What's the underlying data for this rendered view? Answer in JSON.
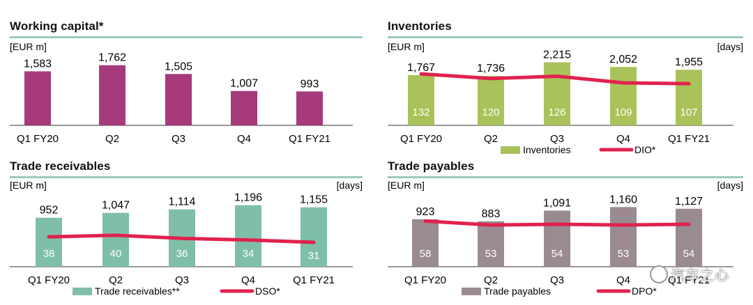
{
  "chart_data": [
    {
      "type": "bar",
      "title": "Working capital*",
      "ylabel": "[EUR m]",
      "categories": [
        "Q1 FY20",
        "Q2",
        "Q3",
        "Q4",
        "Q1 FY21"
      ],
      "values": [
        1583,
        1762,
        1505,
        1007,
        993
      ],
      "value_labels": [
        "1,583",
        "1,762",
        "1,505",
        "1,007",
        "993"
      ],
      "ylim": [
        0,
        2000
      ],
      "colors": {
        "bar": "#a63a7b"
      }
    },
    {
      "type": "bar",
      "title": "Inventories",
      "ylabel": "[EUR m]",
      "y2label": "[days]",
      "categories": [
        "Q1 FY20",
        "Q2",
        "Q3",
        "Q4",
        "Q1 FY21"
      ],
      "values": [
        1767,
        1736,
        2215,
        2052,
        1955
      ],
      "value_labels": [
        "1,767",
        "1,736",
        "2,215",
        "2,052",
        "1,955"
      ],
      "days": [
        132,
        120,
        126,
        109,
        107
      ],
      "ylim": [
        0,
        2400
      ],
      "y2lim": [
        0,
        175
      ],
      "series": [
        {
          "name": "Inventories"
        },
        {
          "name": "DIO*"
        }
      ],
      "colors": {
        "bar": "#a9c25a",
        "line": "#e0224e"
      }
    },
    {
      "type": "bar",
      "title": "Trade receivables",
      "ylabel": "[EUR m]",
      "y2label": "[days]",
      "categories": [
        "Q1 FY20",
        "Q2",
        "Q3",
        "Q4",
        "Q1 FY21"
      ],
      "values": [
        952,
        1047,
        1114,
        1196,
        1155
      ],
      "value_labels": [
        "952",
        "1,047",
        "1,114",
        "1,196",
        "1,155"
      ],
      "days": [
        38,
        40,
        36,
        34,
        31
      ],
      "ylim": [
        0,
        1300
      ],
      "y2lim": [
        0,
        85
      ],
      "series": [
        {
          "name": "Trade receivables**"
        },
        {
          "name": "DSO*"
        }
      ],
      "colors": {
        "bar": "#7fbfa8",
        "line": "#e0224e"
      }
    },
    {
      "type": "bar",
      "title": "Trade payables",
      "ylabel": "[EUR m]",
      "y2label": "[days]",
      "categories": [
        "Q1 FY20",
        "Q2",
        "Q3",
        "Q4",
        "Q1 FY21"
      ],
      "values": [
        923,
        883,
        1091,
        1160,
        1127
      ],
      "value_labels": [
        "923",
        "883",
        "1,091",
        "1,160",
        "1,127"
      ],
      "days": [
        58,
        53,
        54,
        53,
        54
      ],
      "ylim": [
        0,
        1300
      ],
      "y2lim": [
        0,
        85
      ],
      "series": [
        {
          "name": "Trade payables"
        },
        {
          "name": "DPO*"
        }
      ],
      "colors": {
        "bar": "#9a8b90",
        "line": "#e0224e"
      }
    }
  ],
  "watermark": "汽车之心"
}
